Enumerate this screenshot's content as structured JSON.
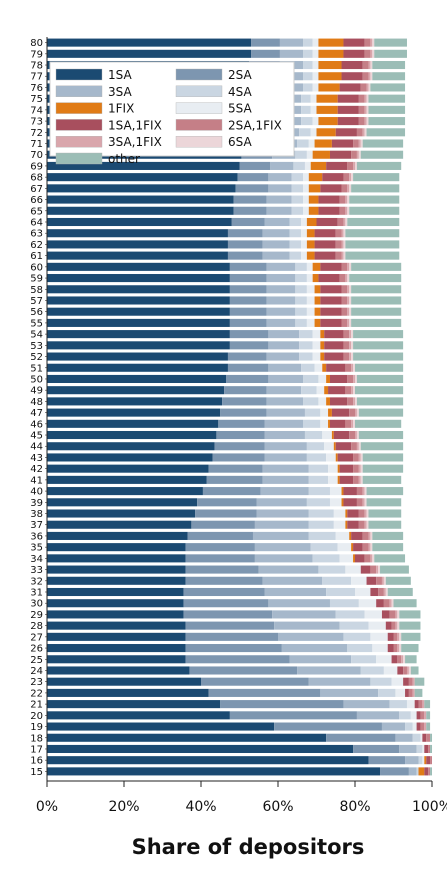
{
  "chart_data": {
    "type": "bar",
    "orientation": "horizontal",
    "stacked": true,
    "xlabel": "Share of depositors",
    "ylabel": "",
    "title": "",
    "xlim": [
      0,
      1
    ],
    "x_ticks": [
      "0%",
      "20%",
      "40%",
      "60%",
      "80%",
      "100%"
    ],
    "legend_position": "top-left",
    "grid": false,
    "categories": [
      "15",
      "16",
      "17",
      "18",
      "19",
      "20",
      "21",
      "22",
      "23",
      "24",
      "25",
      "26",
      "27",
      "28",
      "29",
      "30",
      "31",
      "32",
      "33",
      "34",
      "35",
      "36",
      "37",
      "38",
      "39",
      "40",
      "41",
      "42",
      "43",
      "44",
      "45",
      "46",
      "47",
      "48",
      "49",
      "50",
      "51",
      "52",
      "53",
      "54",
      "55",
      "56",
      "57",
      "58",
      "59",
      "60",
      "61",
      "62",
      "63",
      "64",
      "65",
      "66",
      "67",
      "68",
      "69",
      "70",
      "71",
      "72",
      "73",
      "74",
      "75",
      "76",
      "77",
      "78",
      "79",
      "80"
    ],
    "series": [
      {
        "name": "1SA",
        "color": "#1b4a72",
        "values": [
          0.865,
          0.835,
          0.795,
          0.725,
          0.59,
          0.475,
          0.45,
          0.42,
          0.4,
          0.37,
          0.36,
          0.36,
          0.36,
          0.36,
          0.355,
          0.355,
          0.355,
          0.36,
          0.36,
          0.36,
          0.36,
          0.365,
          0.375,
          0.385,
          0.39,
          0.405,
          0.415,
          0.42,
          0.43,
          0.435,
          0.44,
          0.445,
          0.45,
          0.455,
          0.46,
          0.465,
          0.47,
          0.47,
          0.475,
          0.475,
          0.475,
          0.475,
          0.475,
          0.475,
          0.475,
          0.475,
          0.47,
          0.47,
          0.47,
          0.48,
          0.485,
          0.485,
          0.49,
          0.495,
          0.5,
          0.505,
          0.51,
          0.515,
          0.52,
          0.52,
          0.52,
          0.525,
          0.525,
          0.525,
          0.53,
          0.53
        ]
      },
      {
        "name": "2SA",
        "color": "#7d96b0",
        "values": [
          0.075,
          0.095,
          0.12,
          0.18,
          0.28,
          0.33,
          0.32,
          0.29,
          0.28,
          0.28,
          0.27,
          0.25,
          0.24,
          0.23,
          0.23,
          0.22,
          0.21,
          0.2,
          0.19,
          0.18,
          0.18,
          0.17,
          0.165,
          0.16,
          0.155,
          0.15,
          0.145,
          0.14,
          0.135,
          0.13,
          0.125,
          0.12,
          0.12,
          0.115,
          0.11,
          0.11,
          0.105,
          0.1,
          0.1,
          0.1,
          0.095,
          0.095,
          0.095,
          0.095,
          0.095,
          0.095,
          0.09,
          0.09,
          0.09,
          0.085,
          0.085,
          0.085,
          0.085,
          0.08,
          0.08,
          0.08,
          0.08,
          0.08,
          0.08,
          0.08,
          0.08,
          0.08,
          0.08,
          0.08,
          0.075,
          0.075
        ]
      },
      {
        "name": "3SA",
        "color": "#a6b8cb",
        "values": [
          0.02,
          0.035,
          0.045,
          0.045,
          0.06,
          0.11,
          0.12,
          0.15,
          0.16,
          0.165,
          0.16,
          0.17,
          0.17,
          0.17,
          0.165,
          0.16,
          0.16,
          0.155,
          0.155,
          0.15,
          0.145,
          0.145,
          0.14,
          0.135,
          0.13,
          0.125,
          0.12,
          0.12,
          0.11,
          0.11,
          0.105,
          0.1,
          0.1,
          0.095,
          0.09,
          0.09,
          0.085,
          0.085,
          0.08,
          0.08,
          0.075,
          0.075,
          0.075,
          0.075,
          0.075,
          0.075,
          0.07,
          0.07,
          0.07,
          0.065,
          0.065,
          0.065,
          0.06,
          0.06,
          0.06,
          0.06,
          0.06,
          0.06,
          0.06,
          0.06,
          0.06,
          0.06,
          0.06,
          0.06,
          0.06,
          0.06
        ]
      },
      {
        "name": "4SA",
        "color": "#cad6e2",
        "values": [
          0.005,
          0.01,
          0.015,
          0.02,
          0.02,
          0.03,
          0.045,
          0.045,
          0.055,
          0.06,
          0.065,
          0.065,
          0.07,
          0.075,
          0.075,
          0.075,
          0.075,
          0.075,
          0.07,
          0.07,
          0.07,
          0.07,
          0.065,
          0.065,
          0.06,
          0.055,
          0.05,
          0.05,
          0.05,
          0.045,
          0.045,
          0.045,
          0.04,
          0.04,
          0.04,
          0.04,
          0.035,
          0.035,
          0.035,
          0.035,
          0.03,
          0.03,
          0.03,
          0.03,
          0.03,
          0.03,
          0.03,
          0.03,
          0.03,
          0.03,
          0.03,
          0.03,
          0.03,
          0.03,
          0.03,
          0.03,
          0.03,
          0.03,
          0.03,
          0.025,
          0.025,
          0.025,
          0.025,
          0.025,
          0.025,
          0.025
        ]
      },
      {
        "name": "5SA",
        "color": "#e8edf2",
        "values": [
          0.0,
          0.005,
          0.005,
          0.005,
          0.01,
          0.015,
          0.02,
          0.025,
          0.03,
          0.035,
          0.04,
          0.04,
          0.045,
          0.045,
          0.045,
          0.045,
          0.04,
          0.04,
          0.04,
          0.035,
          0.035,
          0.035,
          0.03,
          0.03,
          0.03,
          0.03,
          0.025,
          0.025,
          0.025,
          0.025,
          0.025,
          0.02,
          0.02,
          0.02,
          0.02,
          0.02,
          0.02,
          0.02,
          0.02,
          0.02,
          0.02,
          0.02,
          0.02,
          0.02,
          0.015,
          0.015,
          0.015,
          0.015,
          0.015,
          0.015,
          0.015,
          0.015,
          0.015,
          0.015,
          0.015,
          0.015,
          0.015,
          0.015,
          0.015,
          0.015,
          0.015,
          0.015,
          0.015,
          0.015,
          0.015,
          0.015
        ]
      },
      {
        "name": "1FIX",
        "color": "#e07b16",
        "values": [
          0.015,
          0.005,
          0.0,
          0.0,
          0.0,
          0.0,
          0.0,
          0.0,
          0.0,
          0.0,
          0.0,
          0.0,
          0.0,
          0.0,
          0.0,
          0.0,
          0.0,
          0.0,
          0.0,
          0.005,
          0.005,
          0.005,
          0.005,
          0.005,
          0.005,
          0.005,
          0.005,
          0.005,
          0.005,
          0.005,
          0.005,
          0.005,
          0.01,
          0.01,
          0.01,
          0.01,
          0.01,
          0.01,
          0.01,
          0.01,
          0.015,
          0.015,
          0.015,
          0.015,
          0.015,
          0.02,
          0.02,
          0.02,
          0.02,
          0.025,
          0.025,
          0.025,
          0.03,
          0.035,
          0.04,
          0.045,
          0.045,
          0.05,
          0.05,
          0.055,
          0.055,
          0.055,
          0.06,
          0.06,
          0.065,
          0.065
        ]
      },
      {
        "name": "1SA,1FIX",
        "color": "#a84f5e",
        "values": [
          0.01,
          0.01,
          0.01,
          0.01,
          0.01,
          0.01,
          0.01,
          0.01,
          0.015,
          0.015,
          0.015,
          0.015,
          0.015,
          0.015,
          0.02,
          0.02,
          0.02,
          0.025,
          0.025,
          0.025,
          0.025,
          0.03,
          0.03,
          0.03,
          0.035,
          0.035,
          0.035,
          0.035,
          0.04,
          0.04,
          0.04,
          0.04,
          0.045,
          0.045,
          0.045,
          0.045,
          0.05,
          0.05,
          0.05,
          0.05,
          0.055,
          0.055,
          0.055,
          0.055,
          0.055,
          0.055,
          0.055,
          0.055,
          0.055,
          0.055,
          0.055,
          0.055,
          0.055,
          0.055,
          0.055,
          0.055,
          0.055,
          0.055,
          0.055,
          0.055,
          0.055,
          0.055,
          0.055,
          0.055,
          0.055,
          0.055
        ]
      },
      {
        "name": "2SA,1FIX",
        "color": "#c57f87",
        "values": [
          0.005,
          0.005,
          0.005,
          0.01,
          0.01,
          0.01,
          0.01,
          0.01,
          0.01,
          0.01,
          0.01,
          0.01,
          0.01,
          0.01,
          0.015,
          0.015,
          0.015,
          0.015,
          0.015,
          0.015,
          0.015,
          0.015,
          0.015,
          0.015,
          0.015,
          0.015,
          0.015,
          0.015,
          0.015,
          0.015,
          0.015,
          0.015,
          0.015,
          0.015,
          0.015,
          0.015,
          0.015,
          0.015,
          0.015,
          0.015,
          0.015,
          0.015,
          0.015,
          0.015,
          0.015,
          0.015,
          0.015,
          0.015,
          0.015,
          0.015,
          0.015,
          0.015,
          0.015,
          0.015,
          0.015,
          0.015,
          0.015,
          0.015,
          0.015,
          0.015,
          0.015,
          0.015,
          0.015,
          0.015,
          0.015,
          0.015
        ]
      },
      {
        "name": "3SA,1FIX",
        "color": "#d9a6ac",
        "values": [
          0.0,
          0.0,
          0.0,
          0.0,
          0.005,
          0.005,
          0.005,
          0.005,
          0.005,
          0.005,
          0.005,
          0.005,
          0.005,
          0.005,
          0.005,
          0.005,
          0.005,
          0.005,
          0.005,
          0.005,
          0.005,
          0.005,
          0.005,
          0.005,
          0.005,
          0.005,
          0.005,
          0.005,
          0.005,
          0.005,
          0.005,
          0.005,
          0.005,
          0.005,
          0.005,
          0.005,
          0.005,
          0.005,
          0.005,
          0.005,
          0.005,
          0.005,
          0.005,
          0.005,
          0.005,
          0.005,
          0.005,
          0.005,
          0.005,
          0.005,
          0.005,
          0.005,
          0.005,
          0.005,
          0.005,
          0.005,
          0.005,
          0.005,
          0.005,
          0.005,
          0.005,
          0.005,
          0.005,
          0.005,
          0.005,
          0.005
        ]
      },
      {
        "name": "6SA",
        "color": "#ecd6d9",
        "values": [
          0.0,
          0.0,
          0.0,
          0.0,
          0.0,
          0.0,
          0.0,
          0.0,
          0.0,
          0.005,
          0.005,
          0.005,
          0.005,
          0.005,
          0.005,
          0.005,
          0.005,
          0.005,
          0.005,
          0.005,
          0.005,
          0.005,
          0.005,
          0.005,
          0.005,
          0.005,
          0.005,
          0.005,
          0.005,
          0.005,
          0.005,
          0.005,
          0.005,
          0.005,
          0.005,
          0.005,
          0.005,
          0.005,
          0.005,
          0.005,
          0.005,
          0.005,
          0.005,
          0.005,
          0.005,
          0.005,
          0.005,
          0.005,
          0.005,
          0.005,
          0.005,
          0.005,
          0.005,
          0.005,
          0.005,
          0.005,
          0.005,
          0.005,
          0.005,
          0.005,
          0.005,
          0.005,
          0.005,
          0.005,
          0.005,
          0.005
        ]
      },
      {
        "name": "other",
        "color": "#9bbdb6",
        "values": [
          0.005,
          0.0,
          0.005,
          0.005,
          0.01,
          0.01,
          0.015,
          0.02,
          0.025,
          0.02,
          0.03,
          0.045,
          0.05,
          0.055,
          0.055,
          0.06,
          0.065,
          0.065,
          0.075,
          0.08,
          0.08,
          0.08,
          0.085,
          0.085,
          0.09,
          0.095,
          0.1,
          0.105,
          0.105,
          0.11,
          0.115,
          0.12,
          0.115,
          0.12,
          0.125,
          0.12,
          0.125,
          0.13,
          0.13,
          0.13,
          0.13,
          0.13,
          0.13,
          0.13,
          0.135,
          0.13,
          0.14,
          0.14,
          0.14,
          0.135,
          0.13,
          0.13,
          0.125,
          0.12,
          0.115,
          0.11,
          0.105,
          0.1,
          0.095,
          0.095,
          0.095,
          0.09,
          0.085,
          0.085,
          0.085,
          0.085
        ]
      }
    ]
  }
}
